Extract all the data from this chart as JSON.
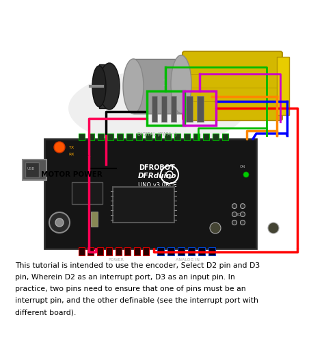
{
  "background_color": "#ffffff",
  "text_color": "#000000",
  "motor_label": "MOTOR POWER",
  "wire_colors": {
    "red": "#ff0000",
    "black": "#000000",
    "green": "#00bb00",
    "magenta": "#cc00cc",
    "blue": "#0000ff",
    "orange": "#ff8800",
    "pink": "#ff0055"
  },
  "figsize": [
    4.74,
    4.98
  ],
  "dpi": 100,
  "text_lines": [
    "This tutorial is intended to use the encoder, Select D2 pin and D3",
    "pin, Wherein D2 as an interrupt port, D3 as an input pin. In",
    "practice, two pins need to ensure that one of pins must be an",
    "interrupt pin, and the other definable (see the interrupt port with",
    "different board)."
  ]
}
